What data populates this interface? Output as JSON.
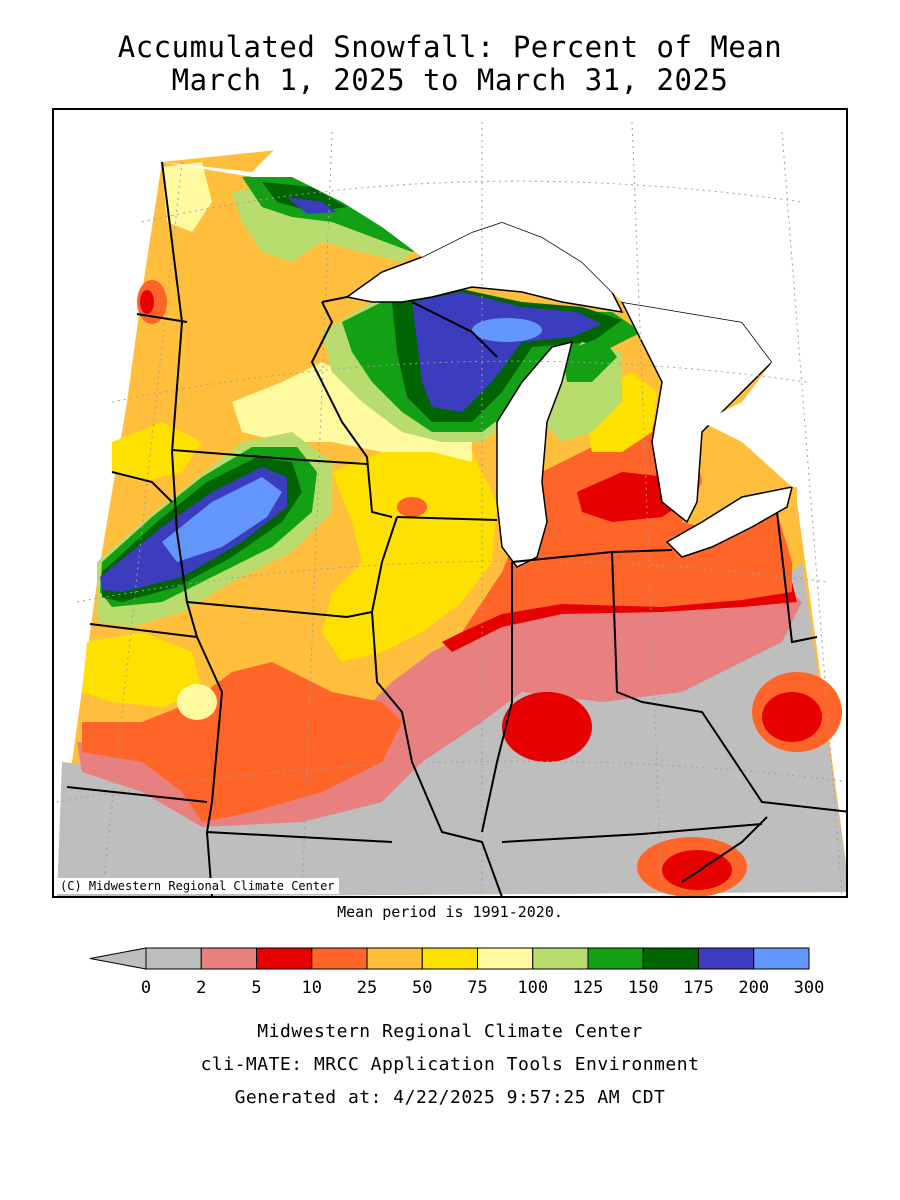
{
  "title_line1": "Accumulated Snowfall: Percent of Mean",
  "title_line2": "March 1, 2025 to March 31, 2025",
  "copyright": "(C) Midwestern Regional Climate Center",
  "mean_period": "Mean period is 1991-2020.",
  "legend": {
    "tick_labels": [
      "0",
      "2",
      "5",
      "10",
      "25",
      "50",
      "75",
      "100",
      "125",
      "150",
      "175",
      "200",
      "300"
    ],
    "colors": [
      "#bebebe",
      "#e88080",
      "#e60000",
      "#ff6428",
      "#ffbe3c",
      "#ffe100",
      "#fffaa0",
      "#b9dc6e",
      "#14a014",
      "#006400",
      "#3c3cbe",
      "#6496ff"
    ],
    "arrow_color": "#bebebe"
  },
  "colors": {
    "lake": "#ffffff",
    "boundary": "#000000",
    "graticule": "#a0a0a0"
  },
  "footer_line1": "Midwestern Regional Climate Center",
  "footer_line2": "cli-MATE: MRCC Application Tools Environment",
  "footer_line3": "Generated at: 4/22/2025 9:57:25 AM CDT"
}
